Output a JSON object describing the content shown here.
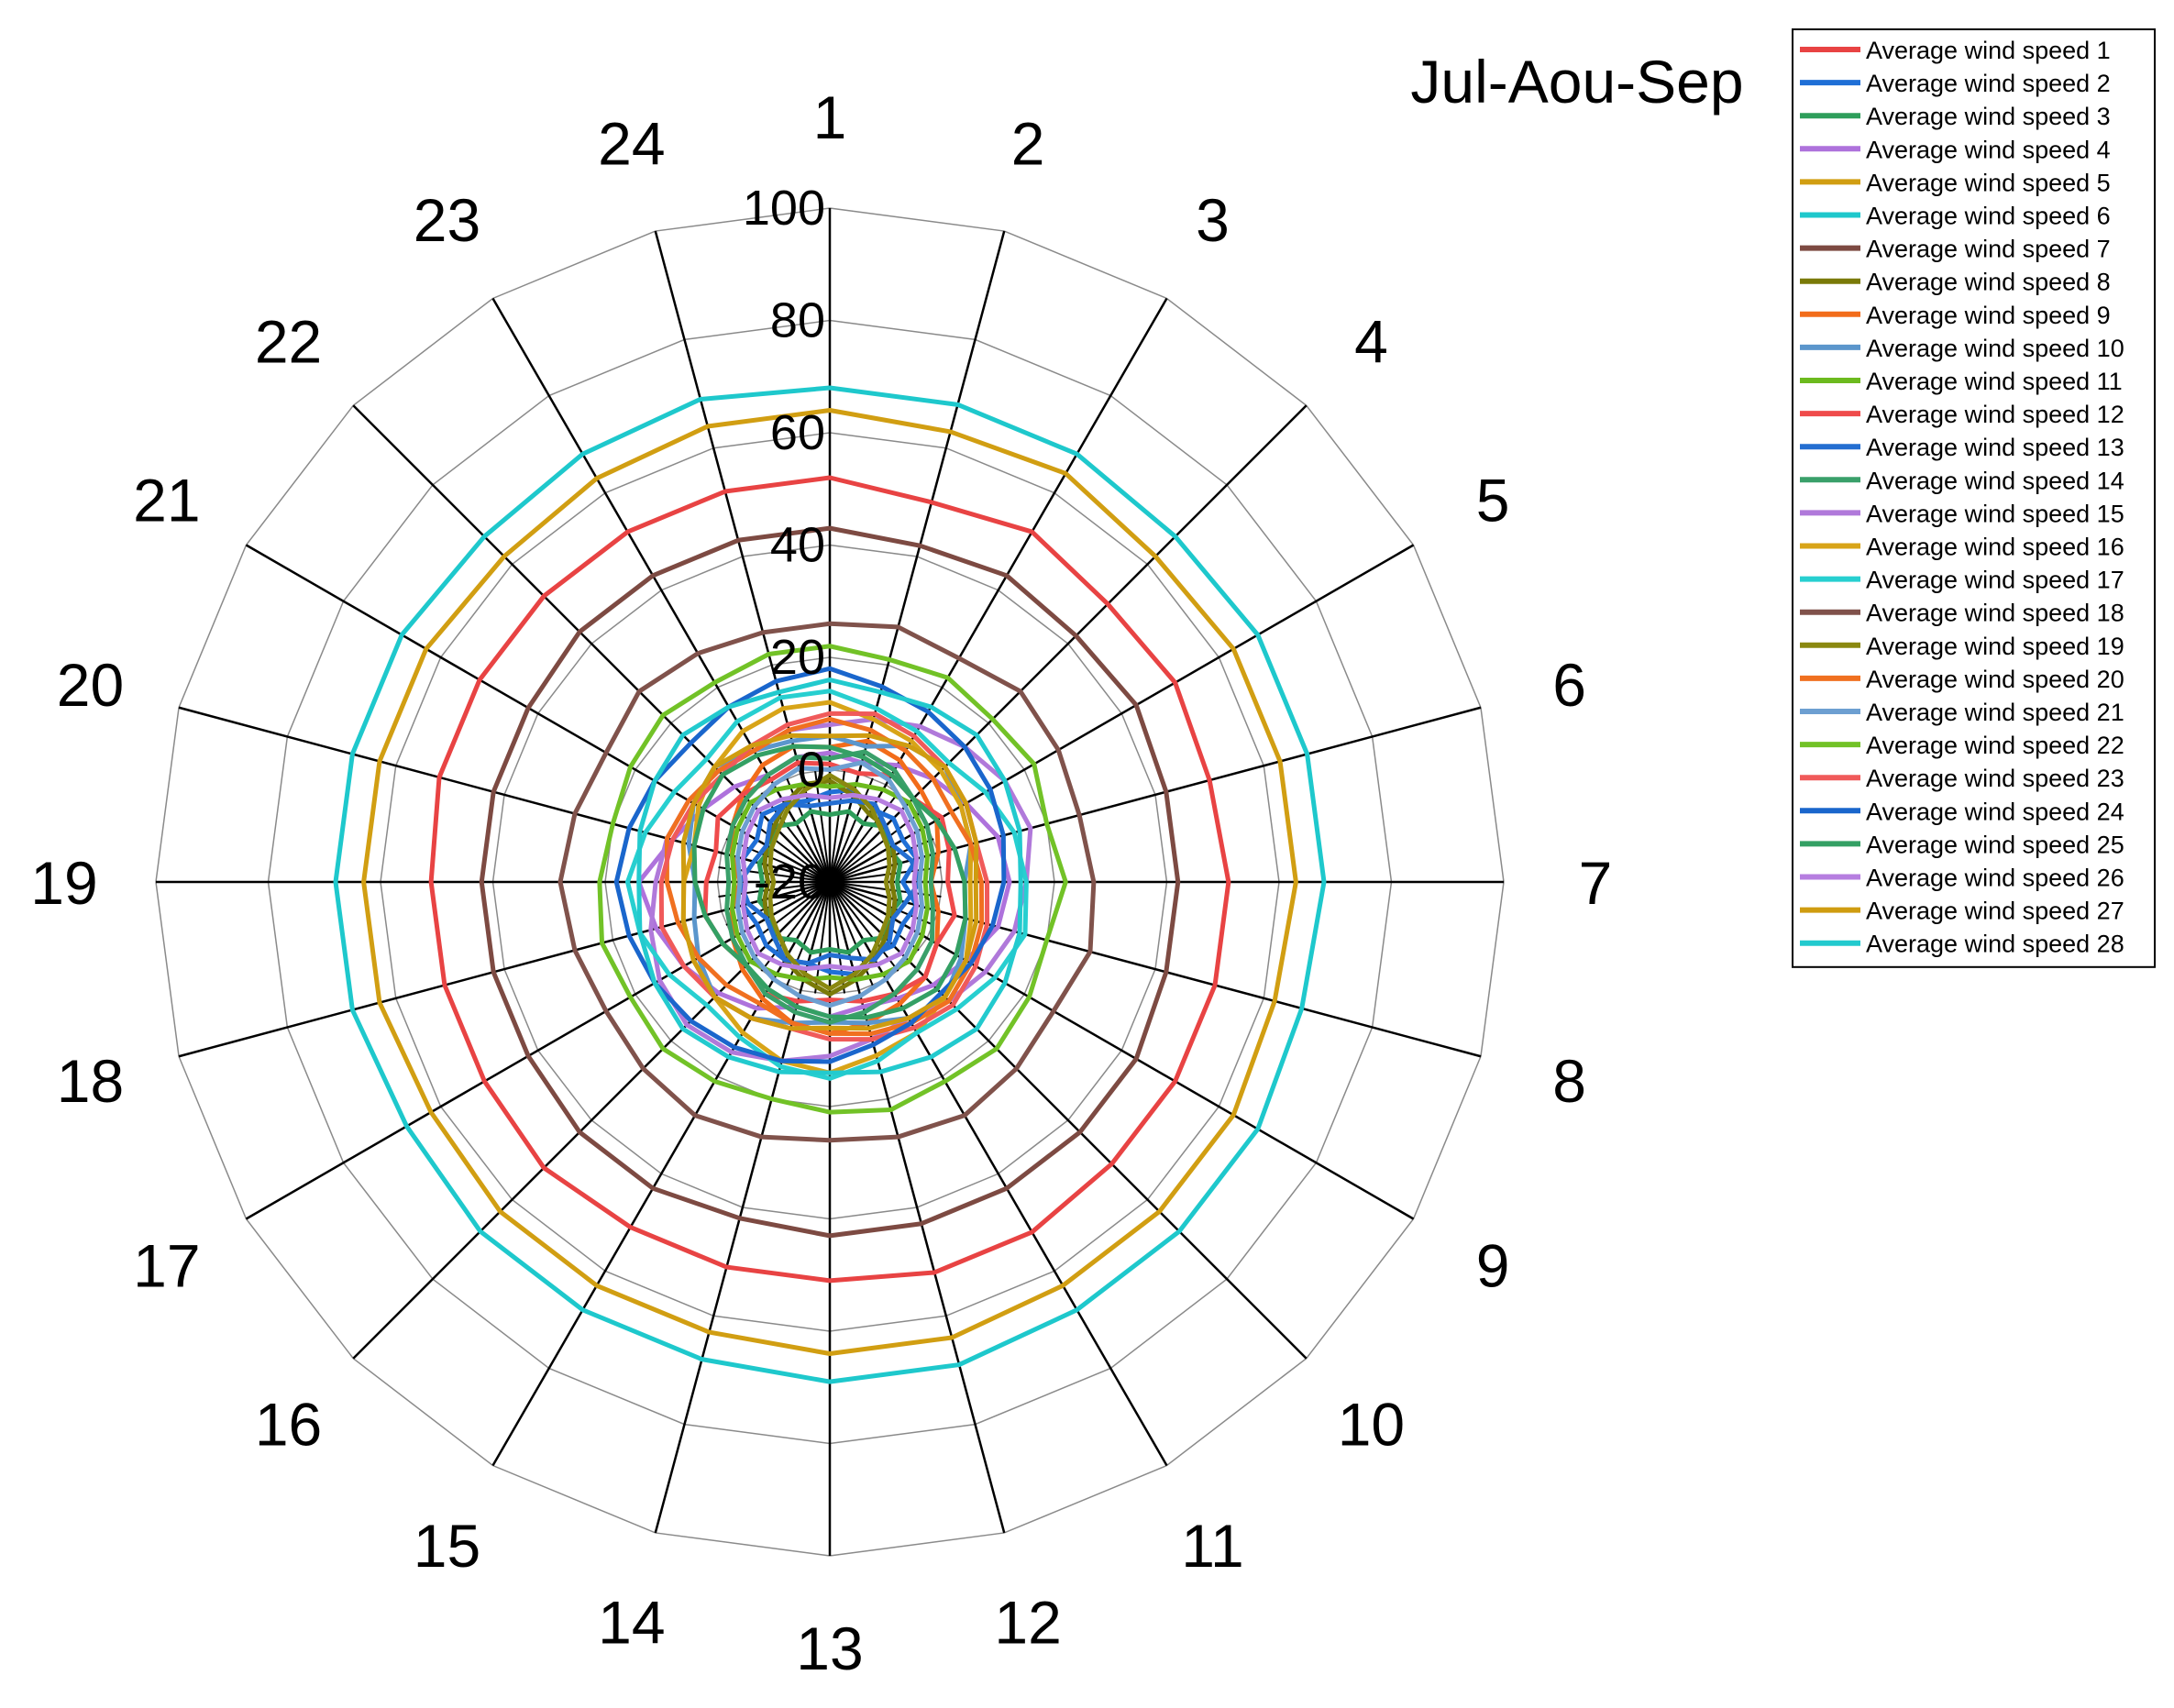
{
  "chart_data": {
    "type": "radar",
    "title": "Jul-Aou-Sep",
    "categories": [
      "1",
      "2",
      "3",
      "4",
      "5",
      "6",
      "7",
      "8",
      "9",
      "10",
      "11",
      "12",
      "13",
      "14",
      "15",
      "16",
      "17",
      "18",
      "19",
      "20",
      "21",
      "22",
      "23",
      "24"
    ],
    "rlim": [
      -20,
      100
    ],
    "ticks": [
      "-20",
      "0",
      "20",
      "40",
      "60",
      "80",
      "100"
    ],
    "grid": true,
    "legend_position": "top-right",
    "series": [
      {
        "name": "Average wind speed 1",
        "color": "#e84343",
        "values": [
          52,
          50,
          52,
          50,
          51,
          50,
          51,
          51,
          51,
          51,
          52,
          52,
          51,
          51,
          51,
          52,
          51,
          51,
          51,
          52,
          52,
          52,
          52,
          52
        ]
      },
      {
        "name": "Average wind speed 2",
        "color": "#1f6fd6",
        "values": [
          -4,
          -3,
          -5,
          -4,
          -5,
          -4,
          -7,
          -4,
          -5,
          -4,
          -5,
          -3,
          -4,
          -5,
          -4,
          -4,
          -5,
          -4,
          -5,
          -4,
          -5,
          -3,
          -4,
          -5
        ]
      },
      {
        "name": "Average wind speed 3",
        "color": "#2e9e5b",
        "values": [
          -8,
          -7,
          -8,
          -6,
          -8,
          -7,
          -8,
          -7,
          -8,
          -6,
          -8,
          -7,
          -8,
          -7,
          -8,
          -6,
          -8,
          -7,
          -8,
          -7,
          -8,
          -6,
          -8,
          -7
        ]
      },
      {
        "name": "Average wind speed 4",
        "color": "#ae72dc",
        "values": [
          3,
          2,
          4,
          6,
          8,
          11,
          12,
          11,
          8,
          6,
          4,
          3,
          4,
          3,
          6,
          8,
          10,
          12,
          14,
          9,
          6,
          4,
          2,
          3
        ]
      },
      {
        "name": "Average wind speed 5",
        "color": "#d19e12",
        "values": [
          64,
          63,
          64,
          62,
          63,
          63,
          63,
          62,
          63,
          63,
          63,
          64,
          64,
          63,
          63,
          63,
          62,
          63,
          63,
          63,
          63,
          62,
          63,
          64
        ]
      },
      {
        "name": "Average wind speed 6",
        "color": "#1ec8cc",
        "values": [
          68,
          68,
          68,
          67,
          68,
          68,
          68,
          67,
          68,
          68,
          68,
          69,
          69,
          68,
          68,
          68,
          67,
          68,
          68,
          68,
          68,
          67,
          68,
          69
        ]
      },
      {
        "name": "Average wind speed 7",
        "color": "#7d4a42",
        "values": [
          43,
          42,
          43,
          42,
          43,
          42,
          42,
          42,
          43,
          43,
          43,
          43,
          43,
          42,
          43,
          43,
          42,
          42,
          42,
          42,
          42,
          43,
          43,
          43
        ]
      },
      {
        "name": "Average wind speed 8",
        "color": "#7a7a08",
        "values": [
          -2,
          -4,
          -6,
          -6,
          -7,
          -8,
          -9,
          -8,
          -7,
          -6,
          -4,
          -2,
          0,
          -2,
          -4,
          -6,
          -7,
          -8,
          -9,
          -8,
          -7,
          -6,
          -4,
          -2
        ]
      },
      {
        "name": "Average wind speed 9",
        "color": "#f26c1a",
        "values": [
          4,
          6,
          5,
          3,
          2,
          0,
          -2,
          0,
          2,
          4,
          5,
          6,
          7,
          6,
          4,
          2,
          0,
          -2,
          -4,
          -2,
          0,
          2,
          4,
          5
        ]
      },
      {
        "name": "Average wind speed 10",
        "color": "#5b96cc",
        "values": [
          6,
          5,
          8,
          9,
          7,
          6,
          4,
          5,
          7,
          9,
          8,
          6,
          5,
          6,
          8,
          9,
          7,
          5,
          4,
          6,
          8,
          9,
          7,
          6
        ]
      },
      {
        "name": "Average wind speed 11",
        "color": "#6cba1e",
        "values": [
          -3,
          -2,
          -1,
          0,
          -1,
          -2,
          -3,
          -2,
          -1,
          0,
          -1,
          -2,
          -3,
          -2,
          -1,
          0,
          -1,
          -2,
          -3,
          -2,
          -1,
          0,
          -1,
          -2
        ]
      },
      {
        "name": "Average wind speed 12",
        "color": "#ef4b4b",
        "values": [
          1,
          0,
          2,
          1,
          3,
          2,
          1,
          3,
          2,
          4,
          3,
          2,
          1,
          2,
          3,
          1,
          2,
          3,
          2,
          1,
          3,
          2,
          1,
          2
        ]
      },
      {
        "name": "Average wind speed 13",
        "color": "#246ed1",
        "values": [
          -6,
          -5,
          -4,
          -6,
          -7,
          -5,
          -4,
          -6,
          -7,
          -5,
          -4,
          -6,
          -7,
          -5,
          -4,
          -6,
          -7,
          -5,
          -4,
          -6,
          -7,
          -5,
          -4,
          -6
        ]
      },
      {
        "name": "Average wind speed 14",
        "color": "#3aa06a",
        "values": [
          2,
          4,
          3,
          1,
          0,
          -1,
          -2,
          -1,
          1,
          2,
          3,
          4,
          5,
          4,
          3,
          1,
          0,
          -1,
          -2,
          -1,
          0,
          1,
          2,
          3
        ]
      },
      {
        "name": "Average wind speed 15",
        "color": "#b079da",
        "values": [
          8,
          10,
          12,
          14,
          16,
          17,
          15,
          14,
          12,
          10,
          8,
          9,
          11,
          13,
          15,
          16,
          15,
          13,
          11,
          10,
          9,
          8,
          7,
          8
        ]
      },
      {
        "name": "Average wind speed 16",
        "color": "#d8a418",
        "values": [
          12,
          10,
          9,
          8,
          7,
          6,
          5,
          6,
          8,
          9,
          11,
          12,
          14,
          13,
          11,
          9,
          8,
          7,
          6,
          5,
          7,
          9,
          11,
          12
        ]
      },
      {
        "name": "Average wind speed 17",
        "color": "#27cfd0",
        "values": [
          14,
          12,
          11,
          10,
          12,
          14,
          15,
          16,
          14,
          12,
          11,
          13,
          15,
          14,
          12,
          11,
          13,
          15,
          16,
          14,
          12,
          11,
          13,
          14
        ]
      },
      {
        "name": "Average wind speed 18",
        "color": "#80524b",
        "values": [
          26,
          27,
          26,
          28,
          27,
          26,
          27,
          28,
          26,
          27,
          28,
          27,
          26,
          27,
          28,
          27,
          26,
          27,
          28,
          27,
          26,
          28,
          27,
          26
        ]
      },
      {
        "name": "Average wind speed 19",
        "color": "#8a8810",
        "values": [
          -1,
          -3,
          -5,
          -7,
          -8,
          -9,
          -10,
          -9,
          -8,
          -7,
          -5,
          -3,
          -1,
          -3,
          -5,
          -7,
          -8,
          -9,
          -10,
          -9,
          -8,
          -7,
          -5,
          -3
        ]
      },
      {
        "name": "Average wind speed 20",
        "color": "#f07020",
        "values": [
          9,
          8,
          7,
          6,
          5,
          6,
          7,
          8,
          9,
          10,
          9,
          8,
          7,
          6,
          5,
          6,
          7,
          8,
          9,
          10,
          9,
          8,
          7,
          8
        ]
      },
      {
        "name": "Average wind speed 21",
        "color": "#6d9fd1",
        "values": [
          0,
          2,
          1,
          -1,
          -2,
          -3,
          -4,
          -3,
          -2,
          -1,
          0,
          1,
          2,
          1,
          0,
          -1,
          -2,
          -3,
          -4,
          -3,
          -2,
          -1,
          0,
          1
        ]
      },
      {
        "name": "Average wind speed 22",
        "color": "#72c227",
        "values": [
          22,
          21,
          22,
          21,
          22,
          20,
          22,
          20,
          21,
          22,
          21,
          22,
          21,
          20,
          21,
          22,
          21,
          22,
          21,
          20,
          21,
          22,
          21,
          22
        ]
      },
      {
        "name": "Average wind speed 23",
        "color": "#f05a5a",
        "values": [
          10,
          11,
          10,
          9,
          8,
          7,
          8,
          9,
          10,
          11,
          10,
          9,
          8,
          7,
          8,
          9,
          10,
          11,
          10,
          9,
          8,
          7,
          8,
          9
        ]
      },
      {
        "name": "Average wind speed 24",
        "color": "#1a66cc",
        "values": [
          18,
          16,
          15,
          14,
          13,
          12,
          11,
          10,
          9,
          8,
          9,
          10,
          12,
          13,
          14,
          15,
          16,
          17,
          18,
          17,
          16,
          15,
          16,
          17
        ]
      },
      {
        "name": "Average wind speed 25",
        "color": "#34a064",
        "values": [
          4,
          3,
          2,
          1,
          2,
          3,
          4,
          5,
          6,
          7,
          6,
          5,
          4,
          3,
          2,
          1,
          2,
          3,
          4,
          5,
          6,
          7,
          6,
          5
        ]
      },
      {
        "name": "Average wind speed 26",
        "color": "#b67ee0",
        "values": [
          -5,
          -4,
          -3,
          -2,
          -3,
          -4,
          -5,
          -4,
          -3,
          -2,
          -3,
          -4,
          -5,
          -4,
          -3,
          -2,
          -3,
          -4,
          -5,
          -4,
          -3,
          -2,
          -3,
          -4
        ]
      },
      {
        "name": "Average wind speed 27",
        "color": "#cf9c10",
        "values": [
          6,
          7,
          8,
          9,
          8,
          7,
          6,
          7,
          8,
          9,
          8,
          7,
          6,
          7,
          8,
          9,
          8,
          7,
          6,
          7,
          8,
          9,
          8,
          7
        ]
      },
      {
        "name": "Average wind speed 28",
        "color": "#22cace",
        "values": [
          16,
          15,
          16,
          17,
          16,
          15,
          14,
          15,
          16,
          17,
          16,
          15,
          14,
          15,
          16,
          17,
          16,
          15,
          14,
          15,
          16,
          17,
          16,
          15
        ]
      }
    ]
  }
}
